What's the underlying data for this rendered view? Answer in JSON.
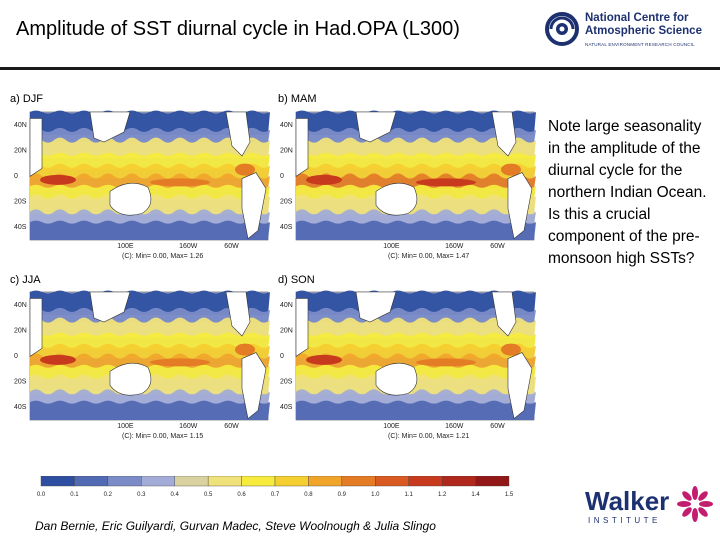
{
  "title": "Amplitude of SST diurnal cycle in Had.OPA (L300)",
  "logos": {
    "ncas": {
      "line1": "National Centre for",
      "line2": "Atmospheric Science",
      "line3": "NATURAL ENVIRONMENT RESEARCH COUNCIL",
      "icon": "ncas-swirl-icon"
    },
    "walker": {
      "word": "Walker",
      "sub": "INSTITUTE",
      "icon": "walker-flower-icon"
    }
  },
  "panels": [
    {
      "letter": "a)",
      "season": "DJF",
      "minmax": "(C): Min= 0.00, Max= 1.26"
    },
    {
      "letter": "b)",
      "season": "MAM",
      "minmax": "(C): Min= 0.00, Max= 1.47"
    },
    {
      "letter": "c)",
      "season": "JJA",
      "minmax": "(C): Min= 0.00, Max= 1.15"
    },
    {
      "letter": "d)",
      "season": "SON",
      "minmax": "(C): Min= 0.00, Max= 1.21"
    }
  ],
  "lat_ticks": [
    "40N",
    "20N",
    "0",
    "20S",
    "40S"
  ],
  "lon_ticks": [
    "100E",
    "160W",
    "60W"
  ],
  "colorbar": {
    "ticks": [
      "0.0",
      "0.1",
      "0.2",
      "0.3",
      "0.4",
      "0.5",
      "0.6",
      "0.7",
      "0.8",
      "0.9",
      "1.0",
      "1.1",
      "1.2",
      "1.4",
      "1.5"
    ],
    "colors": [
      "#2e4fa1",
      "#5269b4",
      "#7a8bc7",
      "#a3acd6",
      "#d9d2a0",
      "#f0e27a",
      "#f7eb3d",
      "#f5cf2f",
      "#f0a52a",
      "#e47c25",
      "#d95a22",
      "#c83a1e",
      "#b0271b",
      "#921818"
    ]
  },
  "note": "Note large seasonality in the amplitude of the diurnal cycle for the northern Indian Ocean. Is this a crucial component of the pre-monsoon high SSTs?",
  "credits": "Dan Bernie, Eric Guilyardi, Gurvan Madec, Steve Woolnough & Julia Slingo"
}
